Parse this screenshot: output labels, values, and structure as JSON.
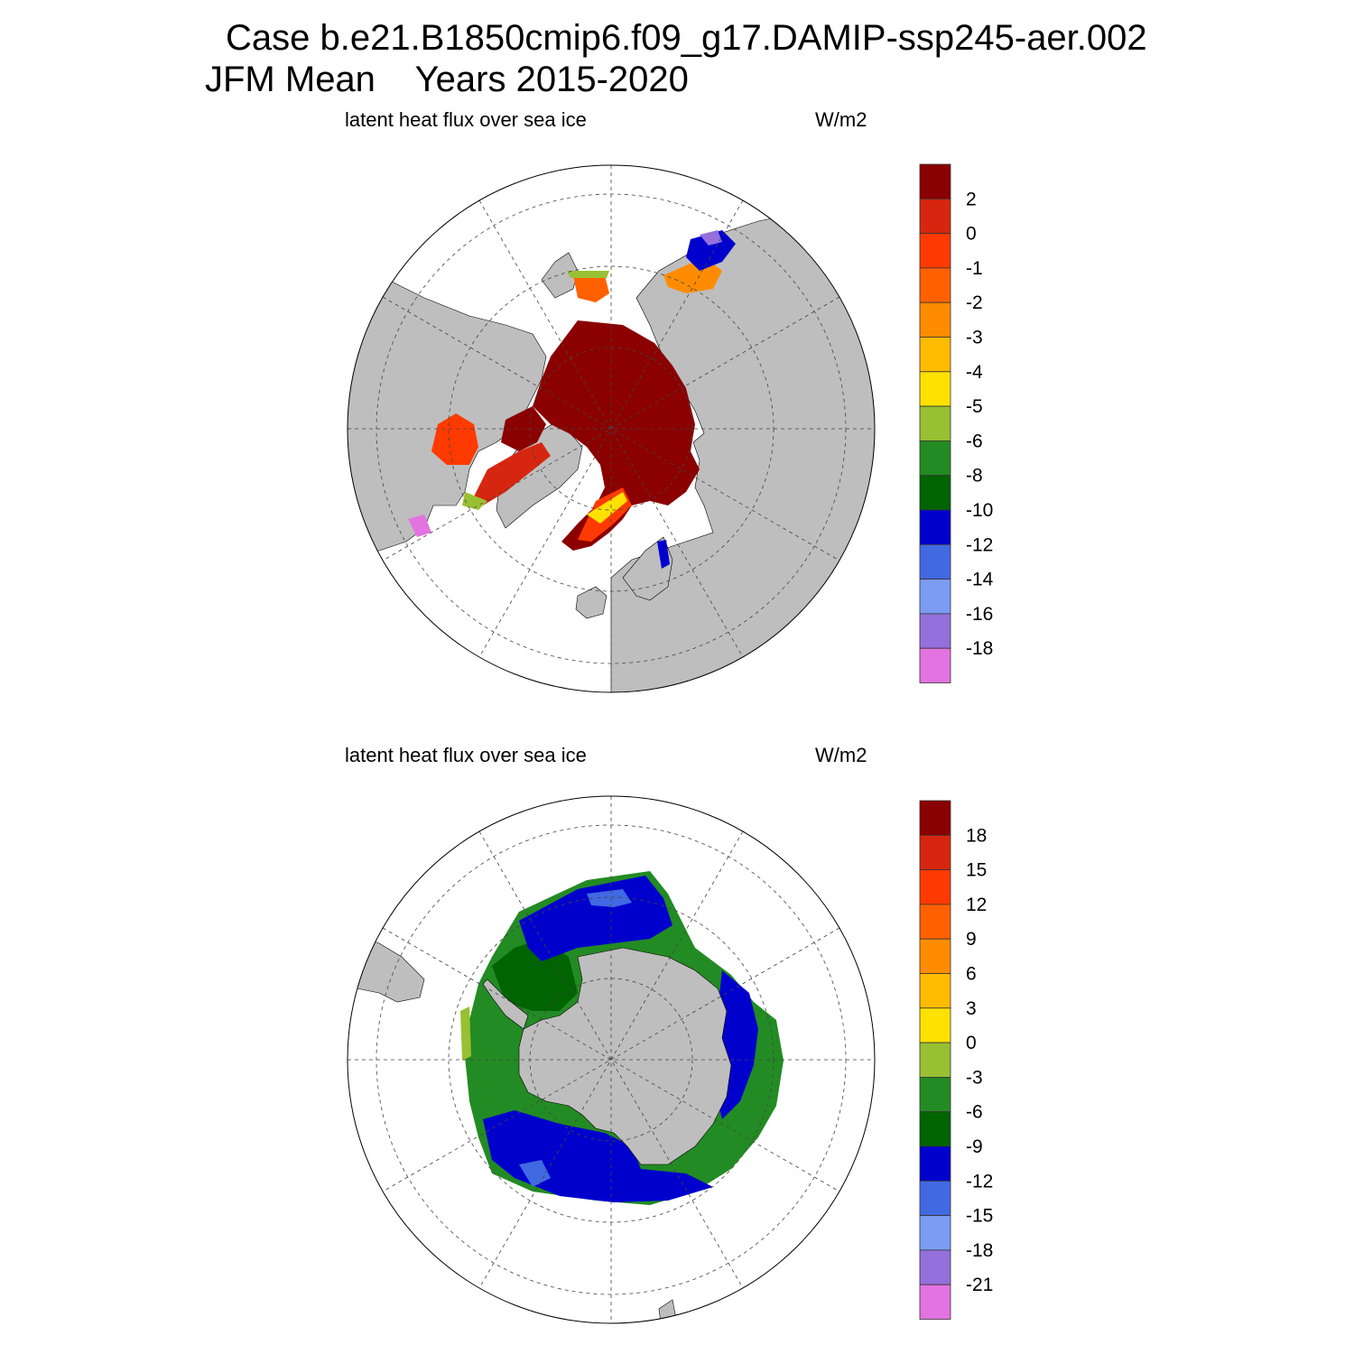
{
  "title": {
    "line1": "Case b.e21.B1850cmip6.f09_g17.DAMIP-ssp245-aer.002",
    "line2": "JFM Mean    Years 2015-2020"
  },
  "colors": {
    "land": "#bebebe",
    "ocean": "#ffffff",
    "palette": [
      "#8b0000",
      "#d7260f",
      "#ff3a00",
      "#ff6100",
      "#ff8c00",
      "#ffbb00",
      "#ffe100",
      "#99c032",
      "#238b23",
      "#006400",
      "#0000cd",
      "#4169e1",
      "#7b9cf2",
      "#9370db",
      "#e373e0"
    ]
  },
  "panels": [
    {
      "id": "north",
      "variable": "latent heat flux over sea ice",
      "units": "W/m2",
      "hemisphere": "Northern",
      "colorbar_labels": [
        "2",
        "0",
        "-1",
        "-2",
        "-3",
        "-4",
        "-5",
        "-6",
        "-8",
        "-10",
        "-12",
        "-14",
        "-16",
        "-18"
      ]
    },
    {
      "id": "south",
      "variable": "latent heat flux over sea ice",
      "units": "W/m2",
      "hemisphere": "Southern",
      "colorbar_labels": [
        "18",
        "15",
        "12",
        "9",
        "6",
        "3",
        "0",
        "-3",
        "-6",
        "-9",
        "-12",
        "-15",
        "-18",
        "-21"
      ]
    }
  ]
}
